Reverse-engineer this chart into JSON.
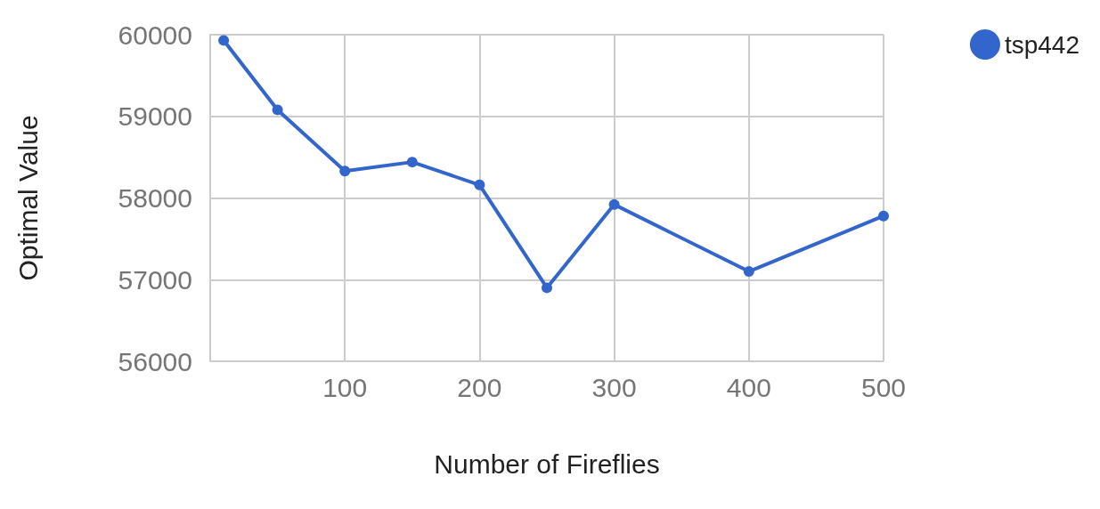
{
  "chart_data": {
    "type": "line",
    "xlabel": "Number of Fireflies",
    "ylabel": "Optimal Value",
    "x": [
      10,
      50,
      100,
      150,
      200,
      250,
      300,
      400,
      500
    ],
    "series": [
      {
        "name": "tsp442",
        "color": "#3366cc",
        "values": [
          59930,
          59080,
          58330,
          58440,
          58160,
          56900,
          57920,
          57100,
          57780
        ]
      }
    ],
    "xlim": [
      0,
      500
    ],
    "xticks": [
      100,
      200,
      300,
      400,
      500
    ],
    "ylim": [
      56000,
      60000
    ],
    "yticks": [
      56000,
      57000,
      58000,
      59000,
      60000
    ],
    "grid": true,
    "legend": "top right",
    "marker": "circle",
    "line_style": "solid"
  }
}
